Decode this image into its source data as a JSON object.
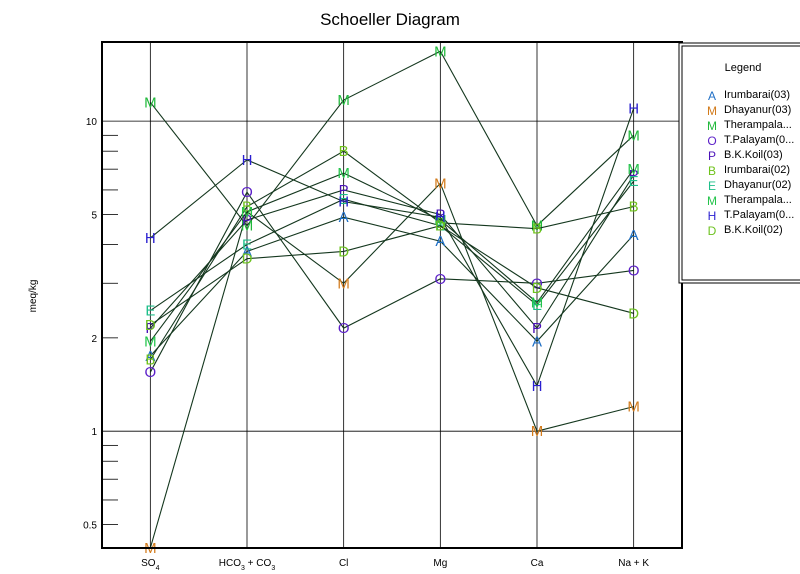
{
  "chart_data": {
    "type": "line",
    "title": "Schoeller Diagram",
    "ylabel": "meq/kg",
    "yscale": "log",
    "ylim": [
      0.42,
      18
    ],
    "grid": true,
    "categories": [
      "SO4",
      "HCO3 + CO3",
      "Cl",
      "Mg",
      "Ca",
      "Na + K"
    ],
    "y_ticks": [
      {
        "value": 0.5,
        "label": "0.5"
      },
      {
        "value": 1,
        "label": "1"
      },
      {
        "value": 2,
        "label": "2"
      },
      {
        "value": 5,
        "label": "5"
      },
      {
        "value": 10,
        "label": "10"
      }
    ],
    "legend": {
      "title": "Legend",
      "position": "right"
    },
    "series": [
      {
        "name": "Irumbarai(03)",
        "marker": "A",
        "color": "#1f6fc5",
        "values": [
          1.75,
          3.8,
          4.9,
          4.1,
          1.95,
          4.3
        ]
      },
      {
        "name": "Dhayanur(03)",
        "marker": "M",
        "color": "#d27a1a",
        "values": [
          0.42,
          5.1,
          3.0,
          6.3,
          1.0,
          1.2
        ]
      },
      {
        "name": "Therampala...",
        "marker": "M",
        "color": "#1fb83a",
        "values": [
          11.5,
          4.6,
          11.7,
          16.8,
          4.6,
          9.0
        ]
      },
      {
        "name": "T.Palayam(0...",
        "marker": "O",
        "color": "#5b1fc8",
        "values": [
          1.55,
          5.9,
          2.15,
          3.1,
          3.0,
          3.3
        ]
      },
      {
        "name": "B.K.Koil(03)",
        "marker": "P",
        "color": "#4b12b8",
        "values": [
          2.15,
          4.8,
          6.0,
          5.0,
          2.15,
          6.7
        ]
      },
      {
        "name": "Irumbarai(02)",
        "marker": "B",
        "color": "#6fc21a",
        "values": [
          1.7,
          5.3,
          8.0,
          4.7,
          4.5,
          5.3
        ]
      },
      {
        "name": "Dhayanur(02)",
        "marker": "E",
        "color": "#1fbf8a",
        "values": [
          2.45,
          4.0,
          5.6,
          4.6,
          2.55,
          6.4
        ]
      },
      {
        "name": "Therampala...",
        "marker": "M",
        "color": "#23c44a",
        "values": [
          1.95,
          5.1,
          6.8,
          4.8,
          2.6,
          7.0
        ]
      },
      {
        "name": "T.Palayam(0...",
        "marker": "H",
        "color": "#2a1fd0",
        "values": [
          4.2,
          7.5,
          5.5,
          4.9,
          1.4,
          11.0
        ]
      },
      {
        "name": "B.K.Koil(02)",
        "marker": "D",
        "color": "#6cc21f",
        "values": [
          2.2,
          3.6,
          3.8,
          4.6,
          2.9,
          2.4
        ]
      }
    ]
  }
}
